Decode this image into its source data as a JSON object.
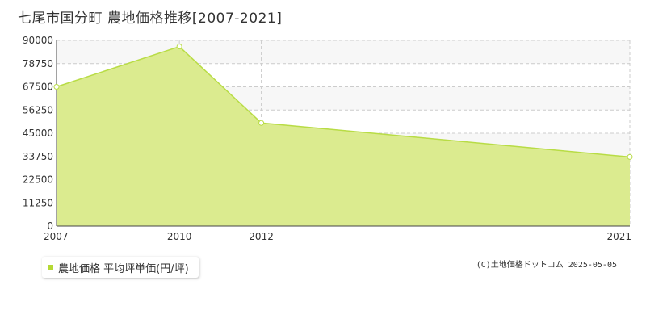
{
  "title": "七尾市国分町 農地価格推移[2007-2021]",
  "legend": {
    "label": "農地価格 平均坪単価(円/坪)",
    "color": "#b5d935"
  },
  "copyright": "(C)土地価格ドットコム 2025-05-05",
  "colors": {
    "area": "#dbeb8f",
    "line": "#b8dc45",
    "grid": "#cccccc",
    "band": "#f7f7f7"
  },
  "chart_data": {
    "type": "area",
    "title": "七尾市国分町 農地価格推移[2007-2021]",
    "series": [
      {
        "name": "農地価格 平均坪単価(円/坪)",
        "x": [
          2007,
          2010,
          2012,
          2021
        ],
        "values": [
          67500,
          87000,
          50000,
          33500
        ]
      }
    ],
    "x_ticks": [
      "2007",
      "2010",
      "2012",
      "2021"
    ],
    "y_ticks": [
      "0",
      "11250",
      "22500",
      "33750",
      "45000",
      "56250",
      "67500",
      "78750",
      "90000"
    ],
    "ylim": [
      0,
      90000
    ],
    "grid": true,
    "legend_position": "bottom-left"
  }
}
